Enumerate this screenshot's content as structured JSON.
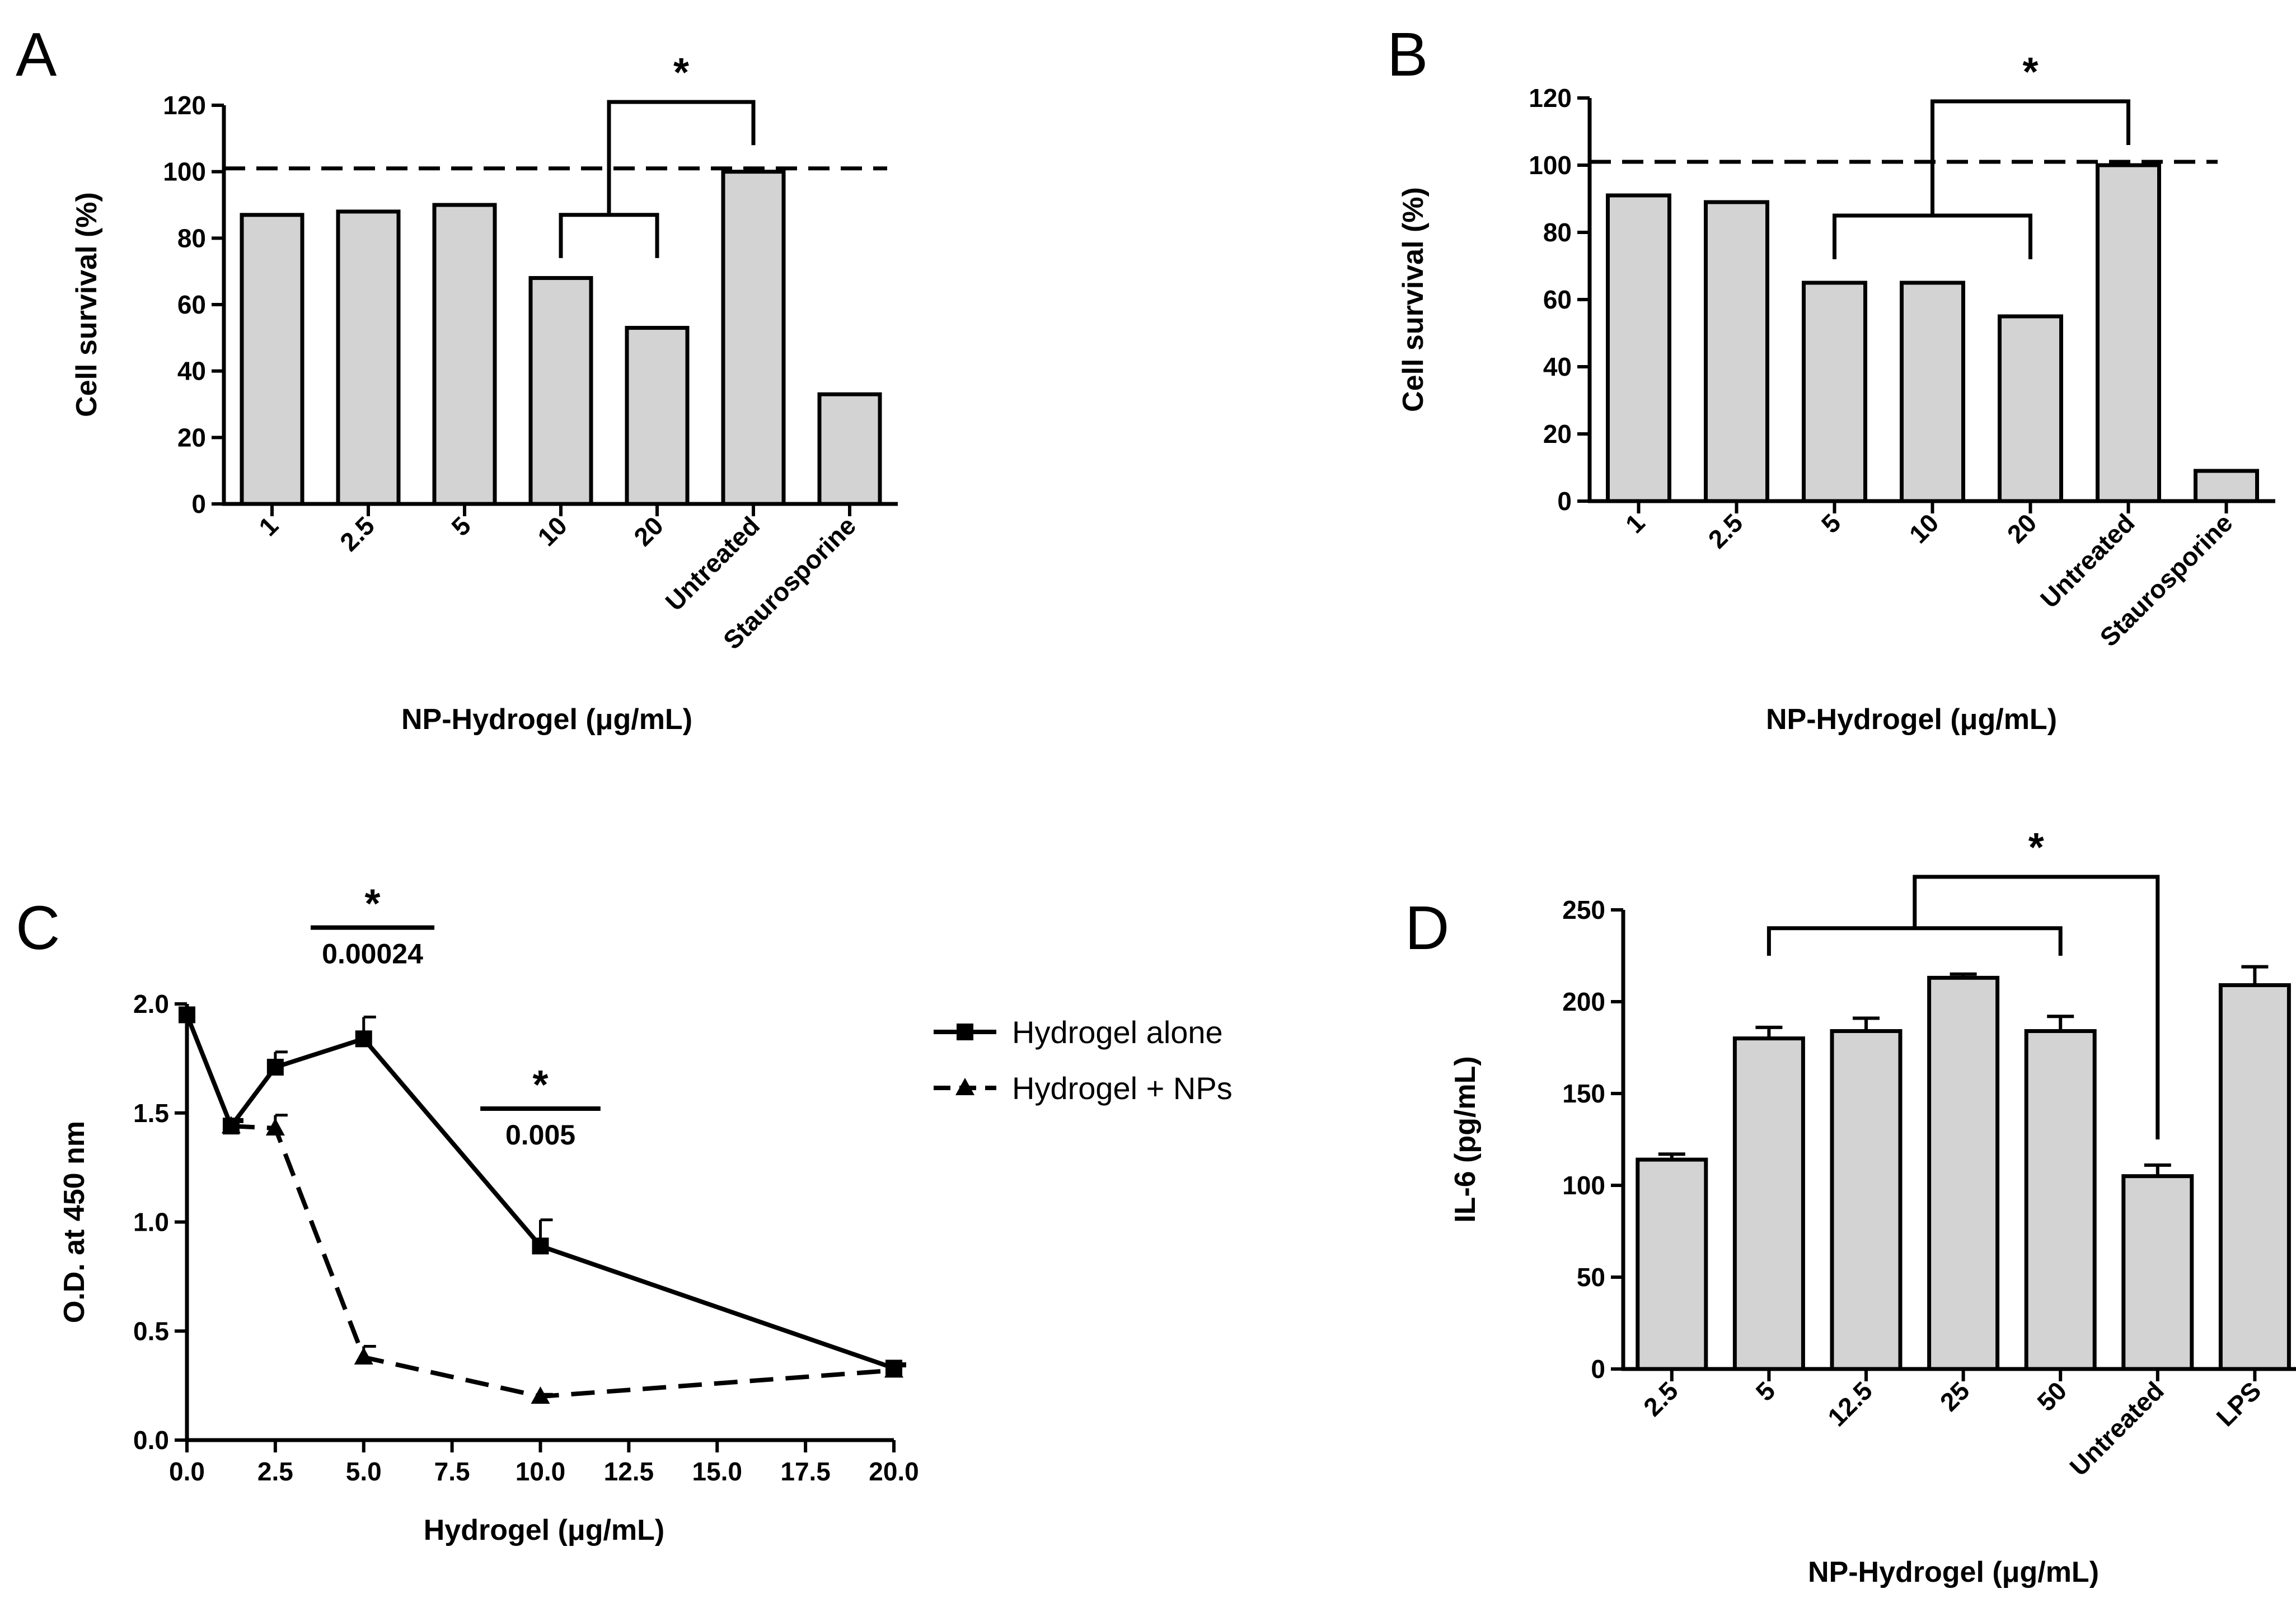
{
  "figure": {
    "panels": [
      "A",
      "B",
      "C",
      "D"
    ]
  },
  "chart_data": [
    {
      "id": "A",
      "type": "bar",
      "title": "",
      "xlabel": "NP-Hydrogel (μg/mL)",
      "ylabel": "Cell survival (%)",
      "categories": [
        "1",
        "2.5",
        "5",
        "10",
        "20",
        "Untreated",
        "Staurosporine"
      ],
      "values": [
        87,
        88,
        90,
        68,
        53,
        100,
        33
      ],
      "ylim": [
        0,
        120
      ],
      "yticks": [
        "0",
        "20",
        "40",
        "60",
        "80",
        "100",
        "120"
      ],
      "reference_line": 101,
      "significance": "*"
    },
    {
      "id": "B",
      "type": "bar",
      "title": "",
      "xlabel": "NP-Hydrogel (μg/mL)",
      "ylabel": "Cell survival (%)",
      "categories": [
        "1",
        "2.5",
        "5",
        "10",
        "20",
        "Untreated",
        "Staurosporine"
      ],
      "values": [
        91,
        89,
        65,
        65,
        55,
        100,
        9
      ],
      "ylim": [
        0,
        120
      ],
      "yticks": [
        "0",
        "20",
        "40",
        "60",
        "80",
        "100",
        "120"
      ],
      "reference_line": 101,
      "significance": "*"
    },
    {
      "id": "C",
      "type": "line",
      "title": "",
      "xlabel": "Hydrogel (μg/mL)",
      "ylabel": "O.D. at 450 nm",
      "xlim": [
        0,
        20
      ],
      "ylim": [
        0,
        2
      ],
      "xticks": [
        "0.0",
        "2.5",
        "5.0",
        "7.5",
        "10.0",
        "12.5",
        "15.0",
        "17.5",
        "20.0"
      ],
      "yticks": [
        "0.0",
        "0.5",
        "1.0",
        "1.5",
        "2.0"
      ],
      "series": [
        {
          "name": "Hydrogel alone",
          "marker": "square",
          "dash": "solid",
          "x": [
            0,
            1.25,
            2.5,
            5,
            10,
            20
          ],
          "y": [
            1.95,
            1.44,
            1.71,
            1.84,
            0.89,
            0.33
          ],
          "err": [
            0,
            0.03,
            0.07,
            0.1,
            0.12,
            0.02
          ]
        },
        {
          "name": "Hydrogel + NPs",
          "marker": "triangle",
          "dash": "dashed",
          "x": [
            1.25,
            2.5,
            5,
            10,
            20
          ],
          "y": [
            1.44,
            1.43,
            0.38,
            0.2,
            0.32
          ],
          "err": [
            0.02,
            0.06,
            0.05,
            0.01,
            0.02
          ]
        }
      ],
      "annotations": [
        {
          "star": "*",
          "pvalue": "0.00024"
        },
        {
          "star": "*",
          "pvalue": "0.005"
        }
      ]
    },
    {
      "id": "D",
      "type": "bar",
      "title": "",
      "xlabel": "NP-Hydrogel (μg/mL)",
      "ylabel": "IL-6 (pg/mL)",
      "categories": [
        "2.5",
        "5",
        "12.5",
        "25",
        "50",
        "Untreated",
        "LPS"
      ],
      "values": [
        114,
        180,
        184,
        213,
        184,
        105,
        209
      ],
      "errors": [
        3,
        6,
        7,
        2,
        8,
        6,
        10
      ],
      "ylim": [
        0,
        250
      ],
      "yticks": [
        "0",
        "50",
        "100",
        "150",
        "200",
        "250"
      ],
      "significance": "*"
    }
  ]
}
